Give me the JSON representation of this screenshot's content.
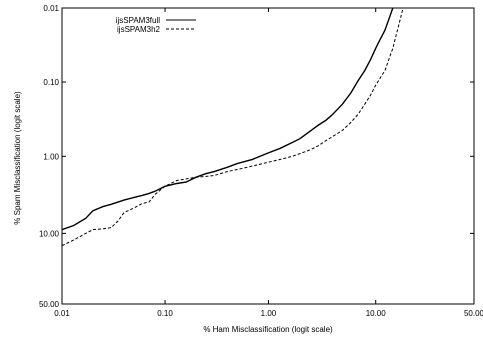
{
  "chart_data": {
    "type": "line",
    "title": "",
    "xlabel": "% Ham Misclassification (logit scale)",
    "ylabel": "% Spam Misclassification (logit scale)",
    "x_scale": "logit",
    "y_scale": "logit",
    "y_inverted": true,
    "xlim": [
      0.01,
      50.0
    ],
    "ylim": [
      0.01,
      50.0
    ],
    "x_ticks": [
      0.01,
      0.1,
      1.0,
      10.0,
      50.0
    ],
    "x_tick_labels": [
      "0.01",
      "0.10",
      "1.00",
      "10.00",
      "50.00"
    ],
    "y_ticks": [
      0.01,
      0.1,
      1.0,
      10.0,
      50.0
    ],
    "y_tick_labels": [
      "0.01",
      "0.10",
      "1.00",
      "10.00",
      "50.00"
    ],
    "grid": false,
    "legend_position": "top-left",
    "series": [
      {
        "name": "ijsSPAM3full",
        "style": "solid",
        "color": "#000000",
        "x": [
          0.01,
          0.013,
          0.017,
          0.02,
          0.025,
          0.03,
          0.04,
          0.05,
          0.06,
          0.07,
          0.08,
          0.1,
          0.13,
          0.16,
          0.2,
          0.25,
          0.3,
          0.4,
          0.5,
          0.7,
          1.0,
          1.3,
          1.7,
          2.0,
          2.5,
          3.0,
          3.5,
          4.0,
          5.0,
          6.0,
          7.0,
          8.0,
          9.0,
          10.0,
          11.0,
          12.0,
          13.0,
          14.0
        ],
        "y": [
          9.0,
          8.0,
          6.5,
          5.2,
          4.6,
          4.3,
          3.8,
          3.5,
          3.3,
          3.1,
          2.9,
          2.5,
          2.3,
          2.2,
          1.9,
          1.7,
          1.6,
          1.4,
          1.25,
          1.1,
          0.9,
          0.78,
          0.65,
          0.58,
          0.46,
          0.38,
          0.33,
          0.28,
          0.2,
          0.14,
          0.095,
          0.07,
          0.05,
          0.035,
          0.026,
          0.02,
          0.014,
          0.01
        ]
      },
      {
        "name": "ijsSPAM3h2",
        "style": "dashed",
        "color": "#000000",
        "x": [
          0.01,
          0.013,
          0.017,
          0.02,
          0.025,
          0.03,
          0.035,
          0.04,
          0.05,
          0.06,
          0.07,
          0.08,
          0.1,
          0.13,
          0.16,
          0.2,
          0.25,
          0.3,
          0.4,
          0.5,
          0.7,
          1.0,
          1.3,
          1.7,
          2.0,
          2.5,
          3.0,
          3.5,
          4.0,
          5.0,
          6.0,
          7.0,
          8.0,
          9.0,
          10.0,
          12.0,
          14.0,
          16.0,
          17.0
        ],
        "y": [
          14.0,
          12.0,
          10.0,
          9.0,
          8.8,
          8.5,
          7.0,
          5.5,
          4.8,
          4.2,
          4.0,
          3.2,
          2.5,
          2.1,
          2.0,
          1.9,
          1.85,
          1.8,
          1.6,
          1.5,
          1.35,
          1.2,
          1.1,
          1.0,
          0.92,
          0.82,
          0.72,
          0.62,
          0.55,
          0.45,
          0.35,
          0.27,
          0.2,
          0.15,
          0.11,
          0.07,
          0.035,
          0.015,
          0.01
        ]
      }
    ]
  }
}
